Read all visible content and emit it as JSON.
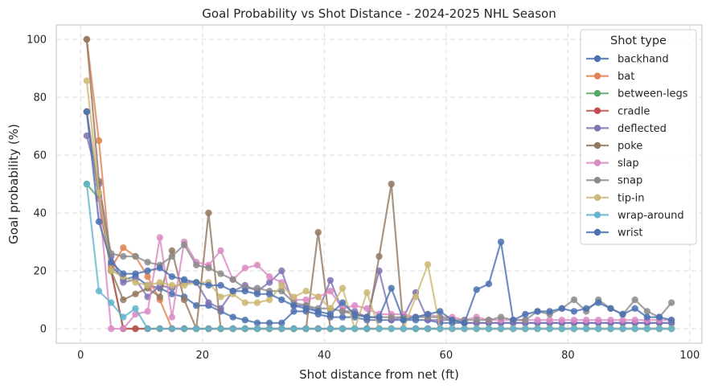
{
  "chart_data": {
    "type": "line",
    "title": "Goal Probability vs Shot Distance - 2024-2025 NHL Season",
    "xlabel": "Shot distance from net (ft)",
    "ylabel": "Goal probability (%)",
    "xlim": [
      -4,
      102
    ],
    "ylim": [
      -5,
      105
    ],
    "xticks": [
      0,
      20,
      40,
      60,
      80,
      100
    ],
    "yticks": [
      0,
      20,
      40,
      60,
      80,
      100
    ],
    "grid": true,
    "legend_title": "Shot type",
    "legend_position": "upper right",
    "series": [
      {
        "name": "backhand",
        "color": "#4c72b0",
        "x": [
          1,
          3,
          5,
          7,
          9,
          11,
          13,
          15,
          17,
          19,
          21,
          23,
          25,
          27,
          29,
          31,
          33,
          35,
          37,
          39,
          41,
          43,
          45,
          47,
          49,
          51,
          53,
          55,
          57,
          59,
          61,
          63,
          65,
          67,
          69,
          71,
          73,
          75,
          77,
          79,
          81,
          83,
          85,
          87,
          89,
          91,
          93,
          95,
          97
        ],
        "y": [
          75,
          45,
          22,
          17,
          18,
          15,
          14,
          12,
          11,
          8,
          8,
          6,
          4,
          3,
          2,
          2,
          2,
          6,
          6,
          5,
          4,
          4,
          4,
          3,
          3,
          3,
          3,
          3,
          3,
          2,
          2,
          2,
          2,
          2,
          2,
          2,
          2,
          2,
          2,
          2,
          2,
          2,
          2,
          2,
          2,
          2,
          2,
          2,
          2
        ]
      },
      {
        "name": "bat",
        "color": "#dd8452",
        "x": [
          1,
          3,
          5,
          7,
          9,
          11,
          13,
          15,
          17,
          19,
          21,
          23,
          25,
          27,
          29,
          31,
          33,
          35,
          37,
          39,
          41,
          43,
          45,
          47,
          49,
          51,
          53,
          55,
          57,
          59,
          61,
          63,
          65,
          67,
          69,
          71,
          73,
          75,
          77,
          79,
          81,
          83,
          85,
          87,
          89,
          91,
          93,
          95,
          97
        ],
        "y": [
          100,
          65,
          21,
          28,
          25,
          18,
          10,
          0,
          0,
          0,
          0,
          0,
          0,
          0,
          0,
          0,
          0,
          0,
          0,
          0,
          0,
          0,
          0,
          0,
          0,
          0,
          0,
          0,
          0,
          0,
          0,
          0,
          0,
          0,
          0,
          0,
          0,
          0,
          0,
          0,
          0,
          0,
          0,
          0,
          0,
          0,
          0,
          0,
          0
        ]
      },
      {
        "name": "between-legs",
        "color": "#55a868",
        "x": [
          1,
          3,
          5,
          7,
          9,
          11,
          13,
          15,
          17,
          19,
          21,
          23,
          25,
          27,
          29,
          31,
          33,
          35,
          37,
          39,
          41,
          43,
          45,
          47,
          49,
          51,
          53,
          55,
          57,
          59,
          61,
          63,
          65,
          67,
          69,
          71,
          73,
          75,
          77,
          79,
          81,
          83,
          85,
          87,
          89,
          91,
          93,
          95,
          97
        ],
        "y": [
          50,
          45,
          20,
          0,
          0,
          0,
          0,
          0,
          0,
          0,
          0,
          0,
          0,
          0,
          0,
          0,
          0,
          0,
          0,
          0,
          0,
          0,
          0,
          0,
          0,
          0,
          0,
          0,
          0,
          0,
          0,
          0,
          0,
          0,
          0,
          0,
          0,
          0,
          0,
          0,
          0,
          0,
          0,
          0,
          0,
          0,
          0,
          0,
          0
        ]
      },
      {
        "name": "cradle",
        "color": "#c44e52",
        "x": [
          1,
          3,
          5,
          7,
          9,
          11,
          13,
          15,
          17,
          19,
          21,
          23,
          25,
          27,
          29,
          31,
          33,
          35,
          37,
          39,
          41,
          43,
          45,
          47,
          49,
          51,
          53,
          55,
          57,
          59,
          61,
          63,
          65,
          67,
          69,
          71,
          73,
          75,
          77,
          79,
          81,
          83,
          85,
          87,
          89,
          91,
          93,
          95,
          97
        ],
        "y": [
          75,
          45,
          20,
          0,
          0,
          0,
          0,
          0,
          0,
          0,
          0,
          0,
          0,
          0,
          0,
          0,
          0,
          0,
          0,
          0,
          0,
          0,
          0,
          0,
          0,
          0,
          0,
          0,
          0,
          0,
          0,
          0,
          0,
          0,
          0,
          0,
          0,
          0,
          0,
          0,
          0,
          0,
          0,
          0,
          0,
          0,
          0,
          0,
          0
        ]
      },
      {
        "name": "deflected",
        "color": "#8172b3",
        "x": [
          1,
          3,
          5,
          7,
          9,
          11,
          13,
          15,
          17,
          19,
          21,
          23,
          25,
          27,
          29,
          31,
          33,
          35,
          37,
          39,
          41,
          43,
          45,
          47,
          49,
          51,
          53,
          55,
          57,
          59,
          61,
          63,
          65,
          67,
          69,
          71,
          73,
          75,
          77,
          79,
          81,
          83,
          85,
          87,
          89,
          91,
          93,
          95,
          97
        ],
        "y": [
          66.7,
          50,
          25,
          16,
          17,
          11,
          15,
          14,
          16,
          16,
          9,
          7,
          13,
          15,
          13,
          16,
          20,
          8,
          8,
          6,
          16.7,
          6,
          6,
          4,
          20,
          3,
          4,
          12.5,
          3,
          3,
          3,
          2,
          2,
          2,
          2,
          2,
          2,
          2,
          2,
          2,
          2,
          2,
          2,
          2,
          2,
          2,
          2,
          2,
          2
        ]
      },
      {
        "name": "poke",
        "color": "#937860",
        "x": [
          1,
          3,
          5,
          7,
          9,
          11,
          13,
          15,
          17,
          19,
          21,
          23,
          25,
          27,
          29,
          31,
          33,
          35,
          37,
          39,
          41,
          43,
          45,
          47,
          49,
          51,
          53,
          55,
          57,
          59,
          61,
          63,
          65,
          67,
          69,
          71,
          73,
          75,
          77,
          79,
          81,
          83,
          85,
          87,
          89,
          91,
          93,
          95,
          97
        ],
        "y": [
          100,
          51,
          20,
          10,
          12,
          14,
          11,
          27,
          10,
          0,
          40,
          0,
          0,
          0,
          0,
          0,
          0,
          0,
          0,
          33.3,
          0,
          0,
          0,
          0,
          25,
          50,
          0,
          0,
          0,
          0,
          0,
          0,
          0,
          0,
          0,
          0,
          0,
          0,
          0,
          0,
          0,
          0,
          0,
          0,
          0,
          0,
          0,
          0,
          0
        ]
      },
      {
        "name": "slap",
        "color": "#da8bc3",
        "x": [
          1,
          3,
          5,
          7,
          9,
          11,
          13,
          15,
          17,
          19,
          21,
          23,
          25,
          27,
          29,
          31,
          33,
          35,
          37,
          39,
          41,
          43,
          45,
          47,
          49,
          51,
          53,
          55,
          57,
          59,
          61,
          63,
          65,
          67,
          69,
          71,
          73,
          75,
          77,
          79,
          81,
          83,
          85,
          87,
          89,
          91,
          93,
          95,
          97
        ],
        "y": [
          75,
          45,
          0,
          0,
          5,
          6,
          31.5,
          4,
          30,
          23,
          22,
          27,
          17,
          21,
          22,
          18,
          16,
          10,
          10,
          11,
          13,
          7,
          8,
          7,
          5,
          5,
          5,
          4,
          5,
          4,
          4,
          3,
          4,
          3,
          3,
          3,
          3,
          3,
          3,
          3,
          3,
          3,
          3,
          3,
          3,
          3,
          3,
          3,
          3
        ]
      },
      {
        "name": "snap",
        "color": "#8c8c8c",
        "x": [
          1,
          3,
          5,
          7,
          9,
          11,
          13,
          15,
          17,
          19,
          21,
          23,
          25,
          27,
          29,
          31,
          33,
          35,
          37,
          39,
          41,
          43,
          45,
          47,
          49,
          51,
          53,
          55,
          57,
          59,
          61,
          63,
          65,
          67,
          69,
          71,
          73,
          75,
          77,
          79,
          81,
          83,
          85,
          87,
          89,
          91,
          93,
          95,
          97
        ],
        "y": [
          75,
          46,
          26,
          25,
          25,
          23,
          22,
          25,
          29,
          22,
          21,
          19,
          17,
          14,
          14,
          13,
          13,
          9,
          8,
          7,
          7,
          6,
          5,
          4,
          4,
          4,
          4,
          4,
          4,
          4,
          3,
          3,
          3,
          3,
          4,
          3,
          3,
          6,
          5,
          7,
          10,
          6,
          10,
          7,
          5,
          10,
          6,
          4,
          9
        ]
      },
      {
        "name": "tip-in",
        "color": "#ccb974",
        "x": [
          1,
          3,
          5,
          7,
          9,
          11,
          13,
          15,
          17,
          19,
          21,
          23,
          25,
          27,
          29,
          31,
          33,
          35,
          37,
          39,
          41,
          43,
          45,
          47,
          49,
          51,
          53,
          55,
          57,
          59,
          61,
          63,
          65,
          67,
          69,
          71,
          73,
          75,
          77,
          79,
          81,
          83,
          85,
          87,
          89,
          91,
          93,
          95,
          97
        ],
        "y": [
          85.7,
          47,
          20,
          18,
          16,
          15,
          16,
          15,
          15,
          16,
          16,
          11,
          12,
          9,
          9,
          10,
          15,
          11,
          13,
          11,
          7,
          14,
          0,
          12.5,
          0,
          0,
          0,
          11,
          22.2,
          0,
          0,
          0,
          0,
          0,
          0,
          0,
          0,
          0,
          0,
          0,
          0,
          0,
          0,
          0,
          0,
          0,
          0,
          0,
          0
        ]
      },
      {
        "name": "wrap-around",
        "color": "#64b5cd",
        "x": [
          1,
          3,
          5,
          7,
          9,
          11,
          13,
          15,
          17,
          19,
          21,
          23,
          25,
          27,
          29,
          31,
          33,
          35,
          37,
          39,
          41,
          43,
          45,
          47,
          49,
          51,
          53,
          55,
          57,
          59,
          61,
          63,
          65,
          67,
          69,
          71,
          73,
          75,
          77,
          79,
          81,
          83,
          85,
          87,
          89,
          91,
          93,
          95,
          97
        ],
        "y": [
          50,
          13,
          9,
          4,
          7,
          0,
          0,
          0,
          0,
          0,
          0,
          0,
          0,
          0,
          0,
          0,
          0,
          0,
          0,
          0,
          0,
          0,
          0,
          0,
          0,
          0,
          0,
          0,
          0,
          0,
          0,
          0,
          0,
          0,
          0,
          0,
          0,
          0,
          0,
          0,
          0,
          0,
          0,
          0,
          0,
          0,
          0,
          0,
          0
        ]
      },
      {
        "name": "wrist",
        "color": "#4c72b0",
        "x": [
          1,
          3,
          5,
          7,
          9,
          11,
          13,
          15,
          17,
          19,
          21,
          23,
          25,
          27,
          29,
          31,
          33,
          35,
          37,
          39,
          41,
          43,
          45,
          47,
          49,
          51,
          53,
          55,
          57,
          59,
          61,
          63,
          65,
          67,
          69,
          71,
          73,
          75,
          77,
          79,
          81,
          83,
          85,
          87,
          89,
          91,
          93,
          95,
          97
        ],
        "y": [
          75,
          37,
          23,
          19,
          19,
          20,
          21,
          18,
          17,
          16,
          15,
          15,
          13,
          13,
          12,
          12,
          10,
          8,
          7,
          6,
          5,
          9,
          5,
          4,
          4,
          14,
          3,
          4,
          5,
          6,
          3,
          2,
          13.5,
          15.5,
          30,
          3,
          5,
          6,
          6,
          7,
          6,
          7,
          9,
          7,
          5,
          7,
          4,
          4,
          3
        ]
      }
    ]
  }
}
